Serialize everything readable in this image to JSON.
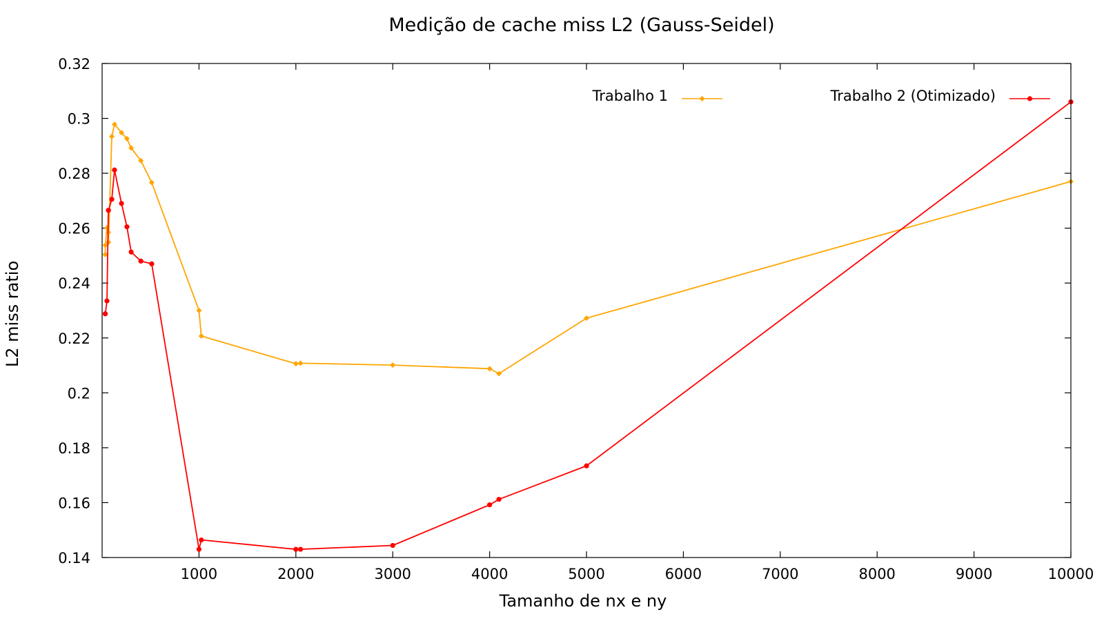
{
  "chart_data": {
    "type": "line",
    "title": "Medição de cache miss L2 (Gauss-Seidel)",
    "xlabel": "Tamanho de nx e ny",
    "ylabel": "L2 miss ratio",
    "xlim": [
      0,
      10000
    ],
    "ylim": [
      0.14,
      0.32
    ],
    "xticks": [
      1000,
      2000,
      3000,
      4000,
      5000,
      6000,
      7000,
      8000,
      9000,
      10000
    ],
    "yticks": [
      0.14,
      0.16,
      0.18,
      0.2,
      0.22,
      0.24,
      0.26,
      0.28,
      0.3,
      0.32
    ],
    "grid": false,
    "legend_placement": "top-right",
    "series": [
      {
        "name": "Trabalho 1",
        "color": "#ffa500",
        "marker": "diamond",
        "x": [
          32,
          33,
          50,
          64,
          66,
          100,
          128,
          200,
          256,
          300,
          400,
          512,
          1000,
          1024,
          2000,
          2048,
          3000,
          4000,
          4096,
          5000,
          10000
        ],
        "y": [
          0.2504,
          0.2538,
          0.2601,
          0.2585,
          0.2549,
          0.2934,
          0.2978,
          0.2948,
          0.2926,
          0.2892,
          0.2846,
          0.2766,
          0.23,
          0.2207,
          0.2106,
          0.2108,
          0.2101,
          0.2088,
          0.207,
          0.2272,
          0.277
        ]
      },
      {
        "name": "Trabalho 2 (Otimizado)",
        "color": "#ff0000",
        "marker": "circle",
        "x": [
          32,
          33,
          50,
          64,
          66,
          100,
          128,
          200,
          256,
          300,
          400,
          512,
          1000,
          1024,
          2000,
          2048,
          3000,
          4000,
          4096,
          5000,
          10000
        ],
        "y": [
          0.2288,
          0.2288,
          0.2335,
          0.2665,
          0.2665,
          0.2705,
          0.2812,
          0.269,
          0.2605,
          0.2513,
          0.248,
          0.247,
          0.143,
          0.1464,
          0.143,
          0.143,
          0.1444,
          0.1592,
          0.1612,
          0.1734,
          0.306
        ]
      }
    ]
  }
}
